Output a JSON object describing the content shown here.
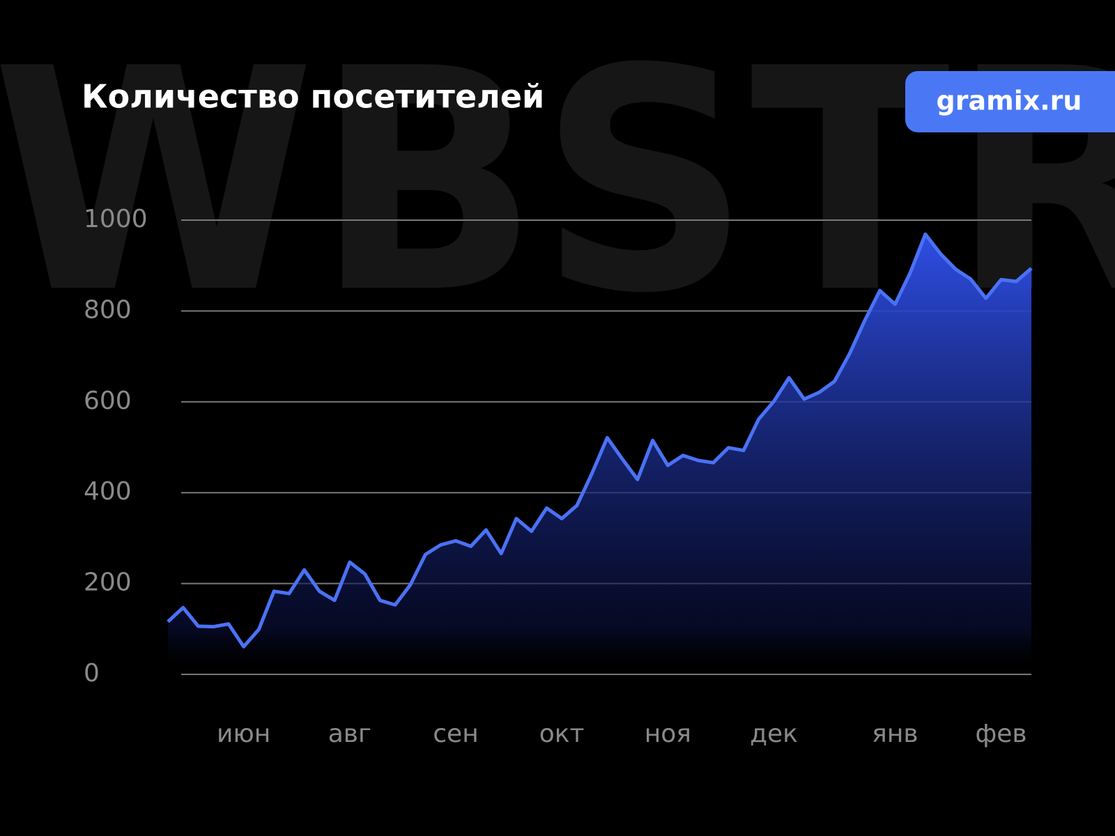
{
  "watermark": "WBSTR",
  "badge": "gramix.ru",
  "chart_data": {
    "type": "area",
    "title": "Количество посетителей",
    "categories": [
      null,
      null,
      null,
      null,
      null,
      "июн",
      null,
      null,
      null,
      null,
      null,
      null,
      "авг",
      null,
      null,
      null,
      null,
      null,
      null,
      "сен",
      null,
      null,
      null,
      null,
      null,
      null,
      "окт",
      null,
      null,
      null,
      null,
      null,
      null,
      "ноя",
      null,
      null,
      null,
      null,
      null,
      null,
      "дек",
      null,
      null,
      null,
      null,
      null,
      null,
      null,
      "янв",
      null,
      null,
      null,
      null,
      null,
      null,
      "фев",
      null,
      null
    ],
    "series": [
      {
        "color": "#4a72f5",
        "values": [
          116,
          147,
          106,
          105,
          111,
          61,
          99,
          183,
          178,
          230,
          183,
          163,
          247,
          221,
          163,
          153,
          197,
          264,
          285,
          294,
          282,
          318,
          266,
          343,
          315,
          366,
          343,
          372,
          443,
          521,
          474,
          429,
          515,
          460,
          482,
          471,
          466,
          499,
          493,
          562,
          601,
          653,
          606,
          621,
          645,
          706,
          779,
          845,
          815,
          884,
          969,
          926,
          892,
          870,
          828,
          869,
          865,
          894
        ]
      }
    ],
    "ylim": [
      0,
      1000
    ],
    "yticks": [
      0,
      200,
      400,
      600,
      800,
      1000
    ],
    "grid": true
  }
}
